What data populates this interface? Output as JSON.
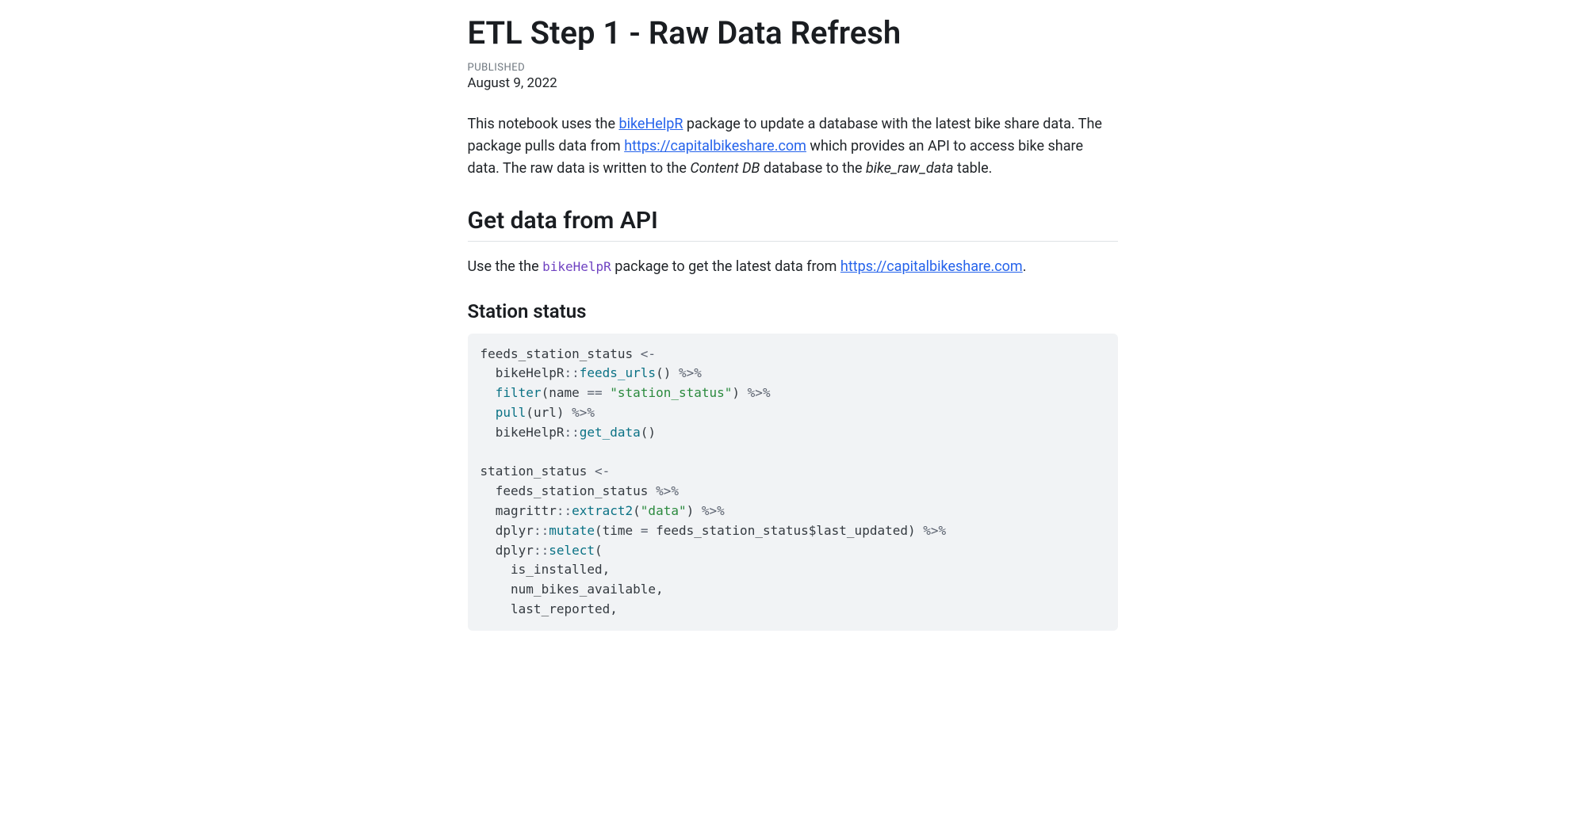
{
  "title": "ETL Step 1 - Raw Data Refresh",
  "published_label": "PUBLISHED",
  "published_date": "August 9, 2022",
  "intro": {
    "part1": "This notebook uses the ",
    "link1_text": "bikeHelpR",
    "part2": " package to update a database with the latest bike share data. The package pulls data from ",
    "link2_text": "https://capitalbikeshare.com",
    "part3": " which provides an API to access bike share data. The raw data is written to the ",
    "italic1": "Content DB",
    "part4": " database to the ",
    "italic2": "bike_raw_data",
    "part5": " table."
  },
  "section1": {
    "heading": "Get data from API",
    "body_part1": "Use the the ",
    "code_inline": "bikeHelpR",
    "body_part2": " package to get the latest data from ",
    "link_text": "https://capitalbikeshare.com",
    "body_part3": "."
  },
  "subsection1": {
    "heading": "Station status"
  },
  "code": {
    "colors": {
      "background": "#f1f3f5",
      "operator": "#5c6370",
      "function": "#0b7285",
      "string": "#2b8a3e",
      "identifier": "#343a40"
    },
    "tokens": {
      "l1_id": "feeds_station_status ",
      "l1_op": "<-",
      "l2_id": "  bikeHelpR",
      "l2_dbl": "::",
      "l2_fn": "feeds_urls",
      "l2_paren": "() ",
      "l2_pipe": "%>%",
      "l3_indent": "  ",
      "l3_fn": "filter",
      "l3_open": "(",
      "l3_arg": "name ",
      "l3_eq": "==",
      "l3_sp": " ",
      "l3_str": "\"station_status\"",
      "l3_close": ") ",
      "l3_pipe": "%>%",
      "l4_indent": "  ",
      "l4_fn": "pull",
      "l4_open": "(",
      "l4_arg": "url",
      "l4_close": ") ",
      "l4_pipe": "%>%",
      "l5_id": "  bikeHelpR",
      "l5_dbl": "::",
      "l5_fn": "get_data",
      "l5_paren": "()",
      "l7_id": "station_status ",
      "l7_op": "<-",
      "l8_id": "  feeds_station_status ",
      "l8_pipe": "%>%",
      "l9_id": "  magrittr",
      "l9_dbl": "::",
      "l9_fn": "extract2",
      "l9_open": "(",
      "l9_str": "\"data\"",
      "l9_close": ") ",
      "l9_pipe": "%>%",
      "l10_id": "  dplyr",
      "l10_dbl": "::",
      "l10_fn": "mutate",
      "l10_open": "(",
      "l10_arg1": "time ",
      "l10_eq": "=",
      "l10_sp": " ",
      "l10_arg2a": "feeds_station_status",
      "l10_dollar": "$",
      "l10_arg2b": "last_updated",
      "l10_close": ") ",
      "l10_pipe": "%>%",
      "l11_id": "  dplyr",
      "l11_dbl": "::",
      "l11_fn": "select",
      "l11_open": "(",
      "l12_arg": "    is_installed,",
      "l13_arg": "    num_bikes_available,",
      "l14_arg": "    last_reported,"
    }
  }
}
